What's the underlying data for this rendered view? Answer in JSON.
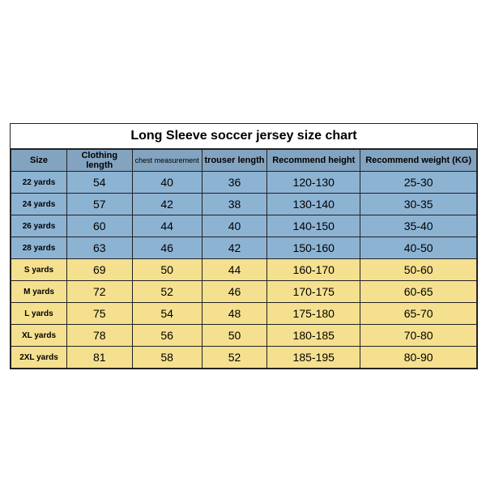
{
  "title": "Long Sleeve soccer jersey size chart",
  "columns": [
    "Size",
    "Clothing length",
    "chest measurement",
    "trouser length",
    "Recommend height",
    "Recommend weight (KG)"
  ],
  "column_widths_pct": [
    12,
    14,
    15,
    14,
    20,
    25
  ],
  "rows": [
    {
      "group": "blue",
      "cells": [
        "22 yards",
        "54",
        "40",
        "36",
        "120-130",
        "25-30"
      ]
    },
    {
      "group": "blue",
      "cells": [
        "24 yards",
        "57",
        "42",
        "38",
        "130-140",
        "30-35"
      ]
    },
    {
      "group": "blue",
      "cells": [
        "26 yards",
        "60",
        "44",
        "40",
        "140-150",
        "35-40"
      ]
    },
    {
      "group": "blue",
      "cells": [
        "28 yards",
        "63",
        "46",
        "42",
        "150-160",
        "40-50"
      ]
    },
    {
      "group": "yel",
      "cells": [
        "S yards",
        "69",
        "50",
        "44",
        "160-170",
        "50-60"
      ]
    },
    {
      "group": "yel",
      "cells": [
        "M yards",
        "72",
        "52",
        "46",
        "170-175",
        "60-65"
      ]
    },
    {
      "group": "yel",
      "cells": [
        "L yards",
        "75",
        "54",
        "48",
        "175-180",
        "65-70"
      ]
    },
    {
      "group": "yel",
      "cells": [
        "XL yards",
        "78",
        "56",
        "50",
        "180-185",
        "70-80"
      ]
    },
    {
      "group": "yel",
      "cells": [
        "2XL yards",
        "81",
        "58",
        "52",
        "185-195",
        "80-90"
      ]
    }
  ],
  "colors": {
    "header_bg": "#83a4c0",
    "group_blue": "#8db3d3",
    "group_yel": "#f5e08f",
    "border": "#222222",
    "page_bg": "#ffffff"
  },
  "type": "table"
}
